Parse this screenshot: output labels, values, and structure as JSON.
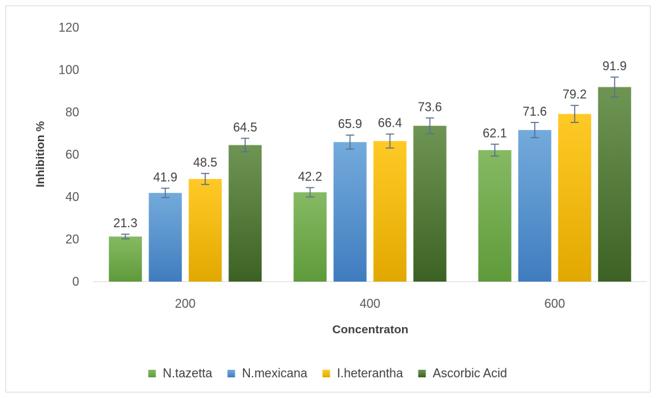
{
  "chart_data": {
    "type": "bar",
    "title": "",
    "xlabel": "Concentraton",
    "ylabel": "Inhibition %",
    "ylim": [
      0,
      120
    ],
    "yticks": [
      0,
      20,
      40,
      60,
      80,
      100,
      120
    ],
    "grid": false,
    "legend_position": "bottom",
    "categories": [
      "200",
      "400",
      "600"
    ],
    "series": [
      {
        "name": "N.tazetta",
        "color": "#70ad47",
        "color_dark": "#5e9a3a",
        "values": [
          21.3,
          42.2,
          62.1
        ],
        "errors": [
          1.1,
          2.2,
          2.8
        ],
        "labels": [
          "21.3",
          "42.2",
          "62.1"
        ]
      },
      {
        "name": "N.mexicana",
        "color": "#5b9bd5",
        "color_dark": "#3f7cbf",
        "values": [
          41.9,
          65.9,
          71.6
        ],
        "errors": [
          2.2,
          3.3,
          3.6
        ],
        "labels": [
          "41.9",
          "65.9",
          "71.6"
        ]
      },
      {
        "name": "I.heterantha",
        "color": "#ffc000",
        "color_dark": "#e0a800",
        "values": [
          48.5,
          66.4,
          79.2
        ],
        "errors": [
          2.6,
          3.3,
          4.0
        ],
        "labels": [
          "48.5",
          "66.4",
          "79.2"
        ]
      },
      {
        "name": "Ascorbic Acid",
        "color": "#548235",
        "color_dark": "#3c6124",
        "values": [
          64.5,
          73.6,
          91.9
        ],
        "errors": [
          3.2,
          3.7,
          4.7
        ],
        "labels": [
          "64.5",
          "73.6",
          "91.9"
        ]
      }
    ]
  }
}
